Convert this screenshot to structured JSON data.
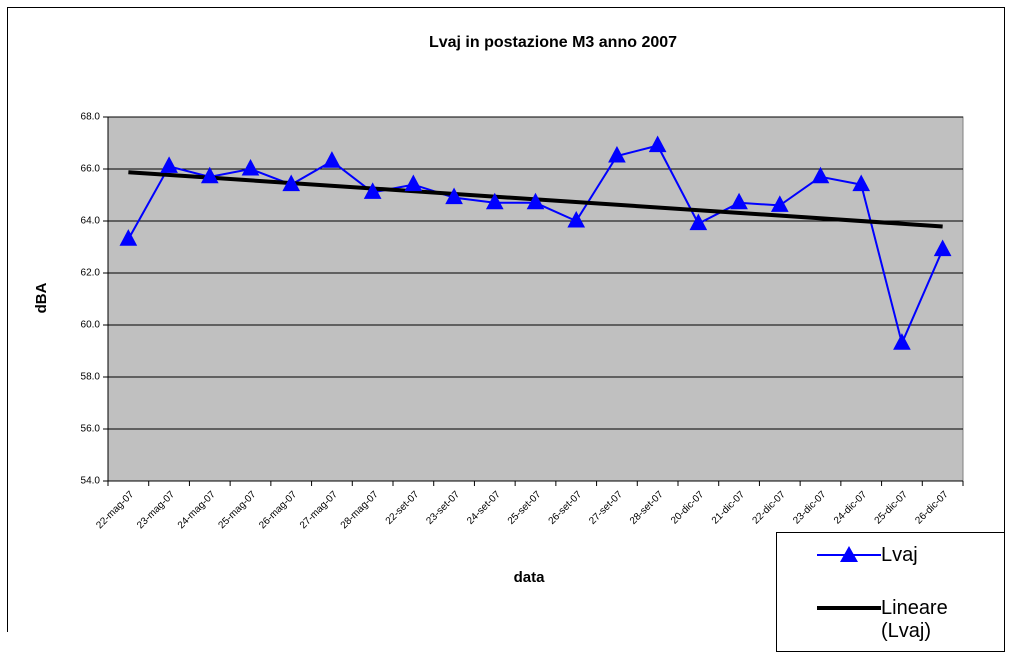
{
  "chart_data": {
    "type": "line",
    "title": "Lvaj in postazione M3 anno 2007",
    "x_label": "data",
    "y_label": "dBA",
    "categories": [
      "22-mag-07",
      "23-mag-07",
      "24-mag-07",
      "25-mag-07",
      "26-mag-07",
      "27-mag-07",
      "28-mag-07",
      "22-set-07",
      "23-set-07",
      "24-set-07",
      "25-set-07",
      "26-set-07",
      "27-set-07",
      "28-set-07",
      "20-dic-07",
      "21-dic-07",
      "22-dic-07",
      "23-dic-07",
      "24-dic-07",
      "25-dic-07",
      "26-dic-07"
    ],
    "series": [
      {
        "name": "Lvaj",
        "color": "#0000ff",
        "marker": "triangle",
        "values": [
          63.3,
          66.1,
          65.7,
          66.0,
          65.4,
          66.3,
          65.1,
          65.4,
          64.9,
          64.7,
          64.7,
          64.0,
          66.5,
          66.9,
          63.9,
          64.7,
          64.6,
          65.7,
          65.4,
          59.3,
          62.9
        ]
      }
    ],
    "trendline": {
      "name": "Lineare (Lvaj)",
      "type": "linear",
      "color": "#000000"
    },
    "ylim": [
      54,
      68
    ],
    "yticks": [
      {
        "value": 54,
        "label": "54.0"
      },
      {
        "value": 56,
        "label": "56.0"
      },
      {
        "value": 58,
        "label": "58.0"
      },
      {
        "value": 60,
        "label": "60.0"
      },
      {
        "value": 62,
        "label": "62.0"
      },
      {
        "value": 64,
        "label": "64.0"
      },
      {
        "value": 66,
        "label": "66.0"
      },
      {
        "value": 68,
        "label": "68.0"
      }
    ],
    "grid": true,
    "plot_background": "#c0c0c0",
    "legend": "bottom-right"
  }
}
